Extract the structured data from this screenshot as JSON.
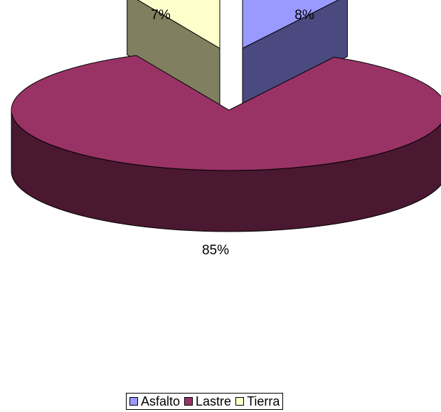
{
  "chart_data": {
    "type": "pie",
    "style": "3d-exploded",
    "categories": [
      "Asfalto",
      "Lastre",
      "Tierra"
    ],
    "values": [
      8,
      85,
      7
    ],
    "data_labels": [
      "8%",
      "85%",
      "7%"
    ],
    "colors": {
      "Asfalto": "#9999ff",
      "Lastre": "#993366",
      "Tierra": "#ffffcc"
    },
    "side_colors": {
      "Asfalto": "#4a4a80",
      "Lastre": "#4a1830",
      "Tierra": "#808060"
    },
    "legend_position": "bottom"
  }
}
